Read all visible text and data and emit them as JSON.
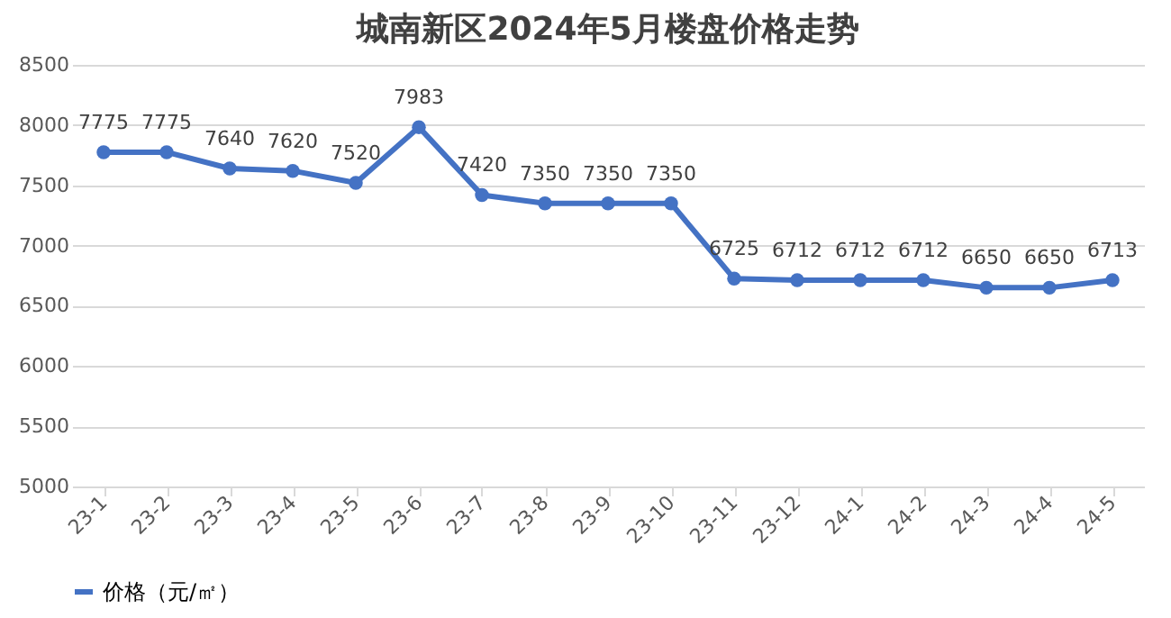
{
  "chart_data": {
    "type": "line",
    "title": "城南新区2024年5月楼盘价格走势",
    "categories": [
      "23-1",
      "23-2",
      "23-3",
      "23-4",
      "23-5",
      "23-6",
      "23-7",
      "23-8",
      "23-9",
      "23-10",
      "23-11",
      "23-12",
      "24-1",
      "24-2",
      "24-3",
      "24-4",
      "24-5"
    ],
    "series": [
      {
        "name": "价格（元/㎡）",
        "color": "#4472c4",
        "values": [
          7775,
          7775,
          7640,
          7620,
          7520,
          7983,
          7420,
          7350,
          7350,
          7350,
          6725,
          6712,
          6712,
          6712,
          6650,
          6650,
          6713
        ]
      }
    ],
    "ylim": [
      5000,
      8500
    ],
    "yticks": [
      5000,
      5500,
      6000,
      6500,
      7000,
      7500,
      8000,
      8500
    ],
    "grid": "y",
    "legend": "bottom",
    "marker": "circle",
    "line_style": "solid",
    "data_labels": true
  }
}
